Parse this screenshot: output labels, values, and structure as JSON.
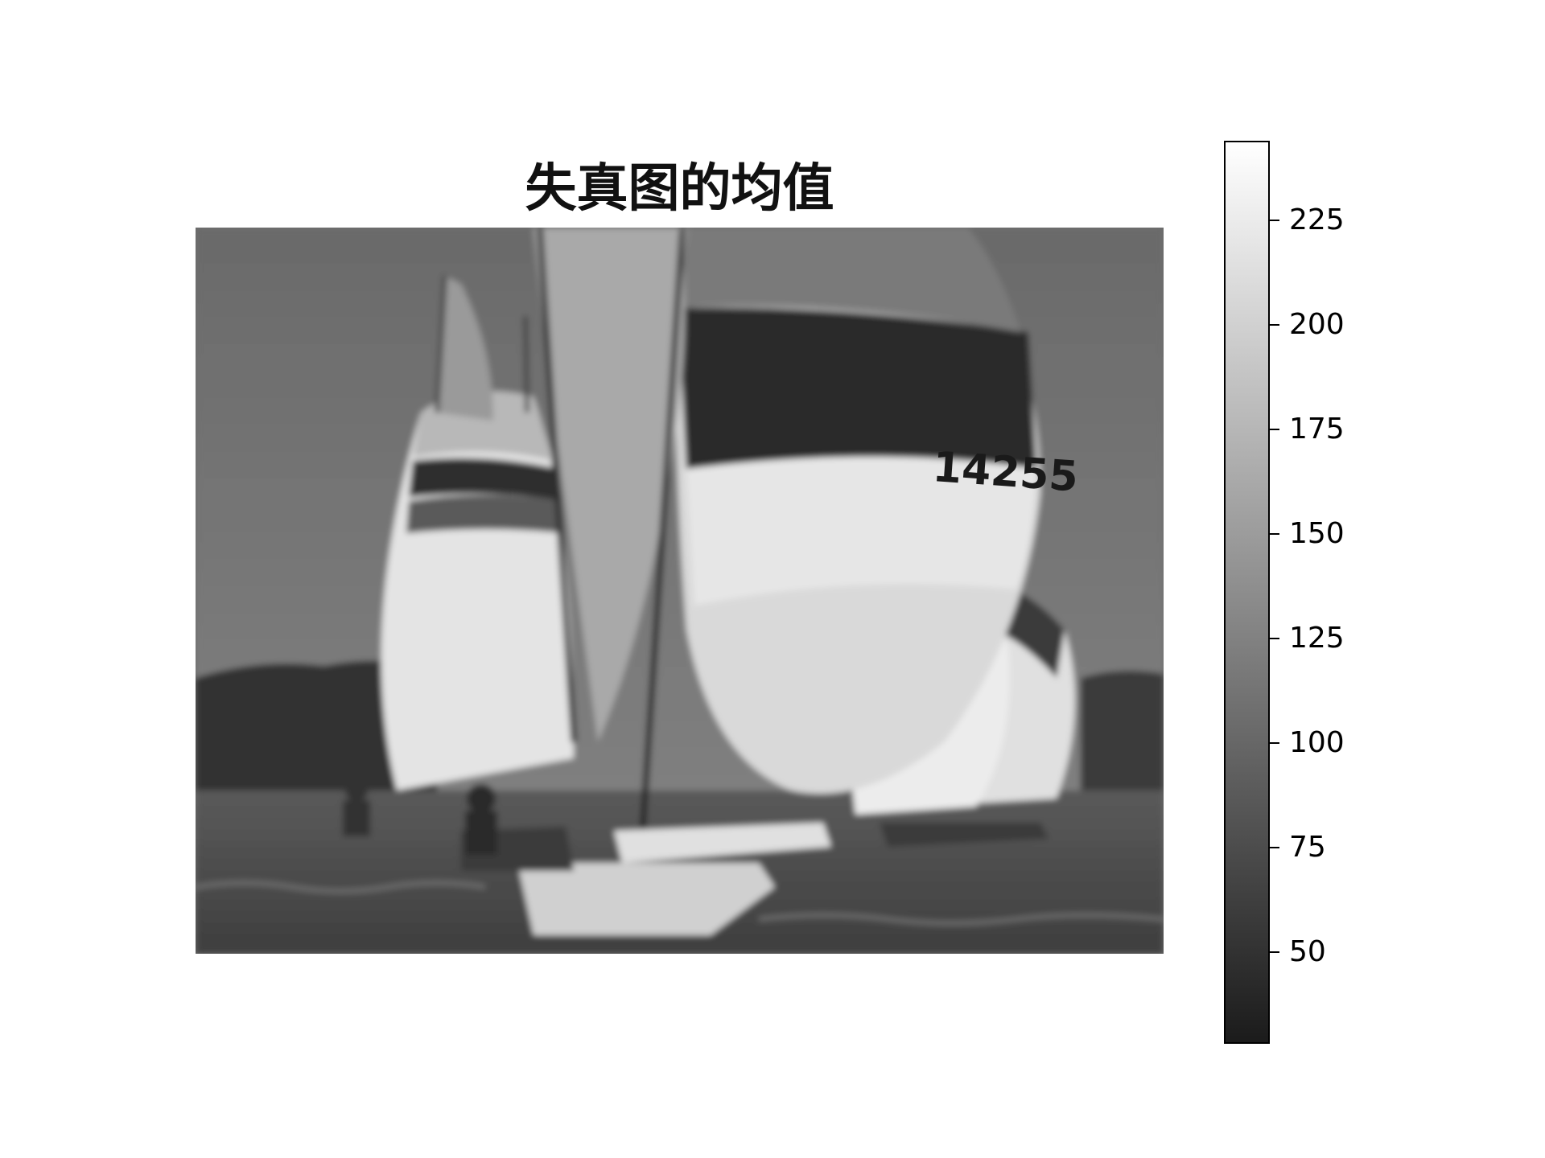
{
  "title": "失真图的均值",
  "image": {
    "description_icon": "sailboats-photo",
    "sail_number": "14255"
  },
  "colorbar": {
    "colormap": "gray",
    "vmin": 28,
    "vmax": 244,
    "ticks": [
      {
        "value": 225,
        "label": "225"
      },
      {
        "value": 200,
        "label": "200"
      },
      {
        "value": 175,
        "label": "175"
      },
      {
        "value": 150,
        "label": "150"
      },
      {
        "value": 125,
        "label": "125"
      },
      {
        "value": 100,
        "label": "100"
      },
      {
        "value": 75,
        "label": "75"
      },
      {
        "value": 50,
        "label": "50"
      }
    ]
  }
}
